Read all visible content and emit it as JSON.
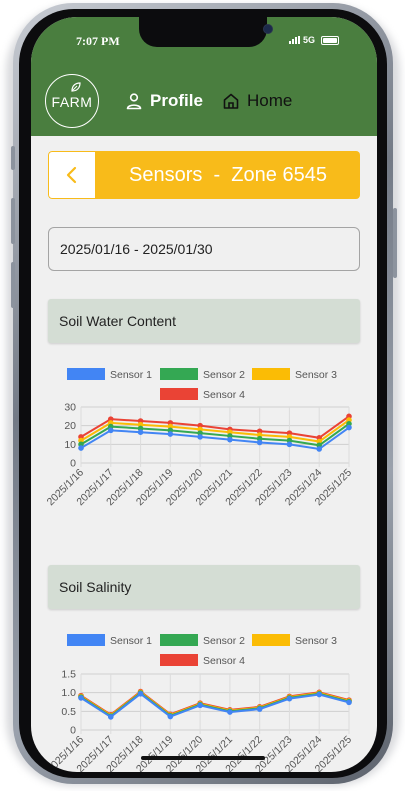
{
  "status": {
    "time": "7:07 PM",
    "network": "5G"
  },
  "appbar": {
    "logo_text": "FARM",
    "nav_profile": "Profile",
    "nav_home": "Home"
  },
  "sensor_card": {
    "title": "Sensors  -  Zone 6545"
  },
  "date_range": {
    "value": "2025/01/16 - 2025/01/30"
  },
  "sections": [
    {
      "title": "Soil Water Content"
    },
    {
      "title": "Soil Salinity"
    }
  ],
  "colors": {
    "appbar": "#4a7e3f",
    "accent": "#f8bb1a",
    "sensor1": "#4285f4",
    "sensor2": "#34a853",
    "sensor3": "#fbbc05",
    "sensor4": "#ea4335"
  },
  "icons": {
    "back": "chevron-left-icon",
    "profile": "person-icon",
    "home": "home-icon",
    "logo": "leaf-icon"
  },
  "chart_data": [
    {
      "type": "line",
      "title": "",
      "x": [
        "2025/1/16",
        "2025/1/17",
        "2025/1/18",
        "2025/1/19",
        "2025/1/20",
        "2025/1/21",
        "2025/1/22",
        "2025/1/23",
        "2025/1/24",
        "2025/1/25"
      ],
      "ylim": [
        0,
        30
      ],
      "yticks": [
        "0",
        "10",
        "20",
        "30"
      ],
      "grid": true,
      "legend": "top",
      "series": [
        {
          "name": "Sensor 1",
          "color": "#4285f4",
          "values": [
            8,
            17.5,
            16.5,
            15.5,
            14,
            12.5,
            11,
            10,
            7.5,
            19
          ]
        },
        {
          "name": "Sensor 2",
          "color": "#34a853",
          "values": [
            10,
            19.5,
            18.5,
            17.5,
            16,
            14.5,
            13,
            12,
            9.5,
            21
          ]
        },
        {
          "name": "Sensor 3",
          "color": "#fbbc05",
          "values": [
            12,
            21.5,
            20.5,
            19.5,
            18,
            16.5,
            15,
            14,
            11.5,
            23
          ]
        },
        {
          "name": "Sensor 4",
          "color": "#ea4335",
          "values": [
            14,
            23.5,
            22.5,
            21.5,
            20,
            18,
            17,
            16,
            13.5,
            25
          ]
        }
      ]
    },
    {
      "type": "line",
      "title": "",
      "x": [
        "2025/1/16",
        "2025/1/17",
        "2025/1/18",
        "2025/1/19",
        "2025/1/20",
        "2025/1/21",
        "2025/1/22",
        "2025/1/23",
        "2025/1/24",
        "2025/1/25"
      ],
      "ylim": [
        0,
        1.5
      ],
      "yticks": [
        "0",
        "0.5",
        "1.0",
        "1.5"
      ],
      "grid": true,
      "legend": "top",
      "series": [
        {
          "name": "Sensor 1",
          "color": "#4285f4",
          "values": [
            0.86,
            0.35,
            0.97,
            0.36,
            0.66,
            0.48,
            0.56,
            0.84,
            0.95,
            0.74
          ]
        },
        {
          "name": "Sensor 2",
          "color": "#34a853",
          "values": [
            0.88,
            0.37,
            0.99,
            0.38,
            0.68,
            0.5,
            0.58,
            0.86,
            0.97,
            0.76
          ]
        },
        {
          "name": "Sensor 3",
          "color": "#fbbc05",
          "values": [
            0.9,
            0.39,
            1.01,
            0.4,
            0.7,
            0.52,
            0.6,
            0.88,
            0.99,
            0.78
          ]
        },
        {
          "name": "Sensor 4",
          "color": "#ea4335",
          "values": [
            0.92,
            0.41,
            1.03,
            0.42,
            0.72,
            0.54,
            0.62,
            0.9,
            1.01,
            0.8
          ]
        }
      ]
    }
  ]
}
